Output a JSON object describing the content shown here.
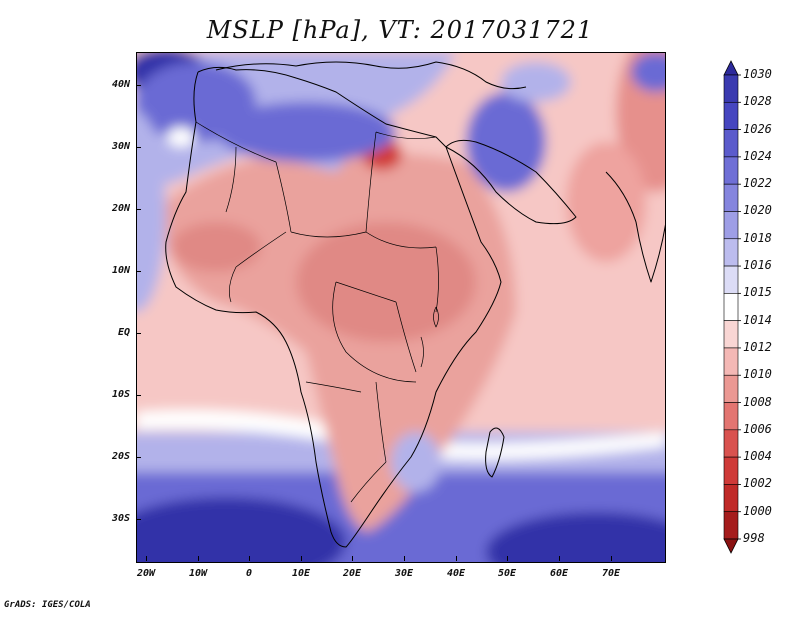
{
  "title": "MSLP [hPa], VT: 2017031721",
  "credit": "GrADS: IGES/COLA",
  "lat_labels": [
    "40N",
    "30N",
    "20N",
    "10N",
    "EQ",
    "10S",
    "20S",
    "30S"
  ],
  "lon_labels": [
    "20W",
    "10W",
    "0",
    "10E",
    "20E",
    "30E",
    "40E",
    "50E",
    "60E",
    "70E"
  ],
  "colorbar": {
    "levels": [
      "1030",
      "1028",
      "1026",
      "1024",
      "1022",
      "1020",
      "1018",
      "1016",
      "1015",
      "1014",
      "1012",
      "1010",
      "1008",
      "1006",
      "1004",
      "1002",
      "1000",
      "998"
    ],
    "colors": [
      "#2d2a9c",
      "#3a3ab0",
      "#4646c0",
      "#5b5bcc",
      "#6f6fd6",
      "#8585de",
      "#9e9ee6",
      "#bcbcee",
      "#dcdcf6",
      "#ffffff",
      "#f9d6d4",
      "#f4b8b5",
      "#eb9893",
      "#e37571",
      "#d9524f",
      "#cf3a38",
      "#c02a28",
      "#a51c1c",
      "#8a1212"
    ]
  },
  "map_colors": {
    "ocean_base": "#f6c7c5",
    "land_base": "#eaa29d",
    "low_center": "#d23a36",
    "high_deep": "#3030a8",
    "high_mid": "#6a6ad4",
    "high_light": "#b2b2ea",
    "neutral": "#ffffff"
  }
}
